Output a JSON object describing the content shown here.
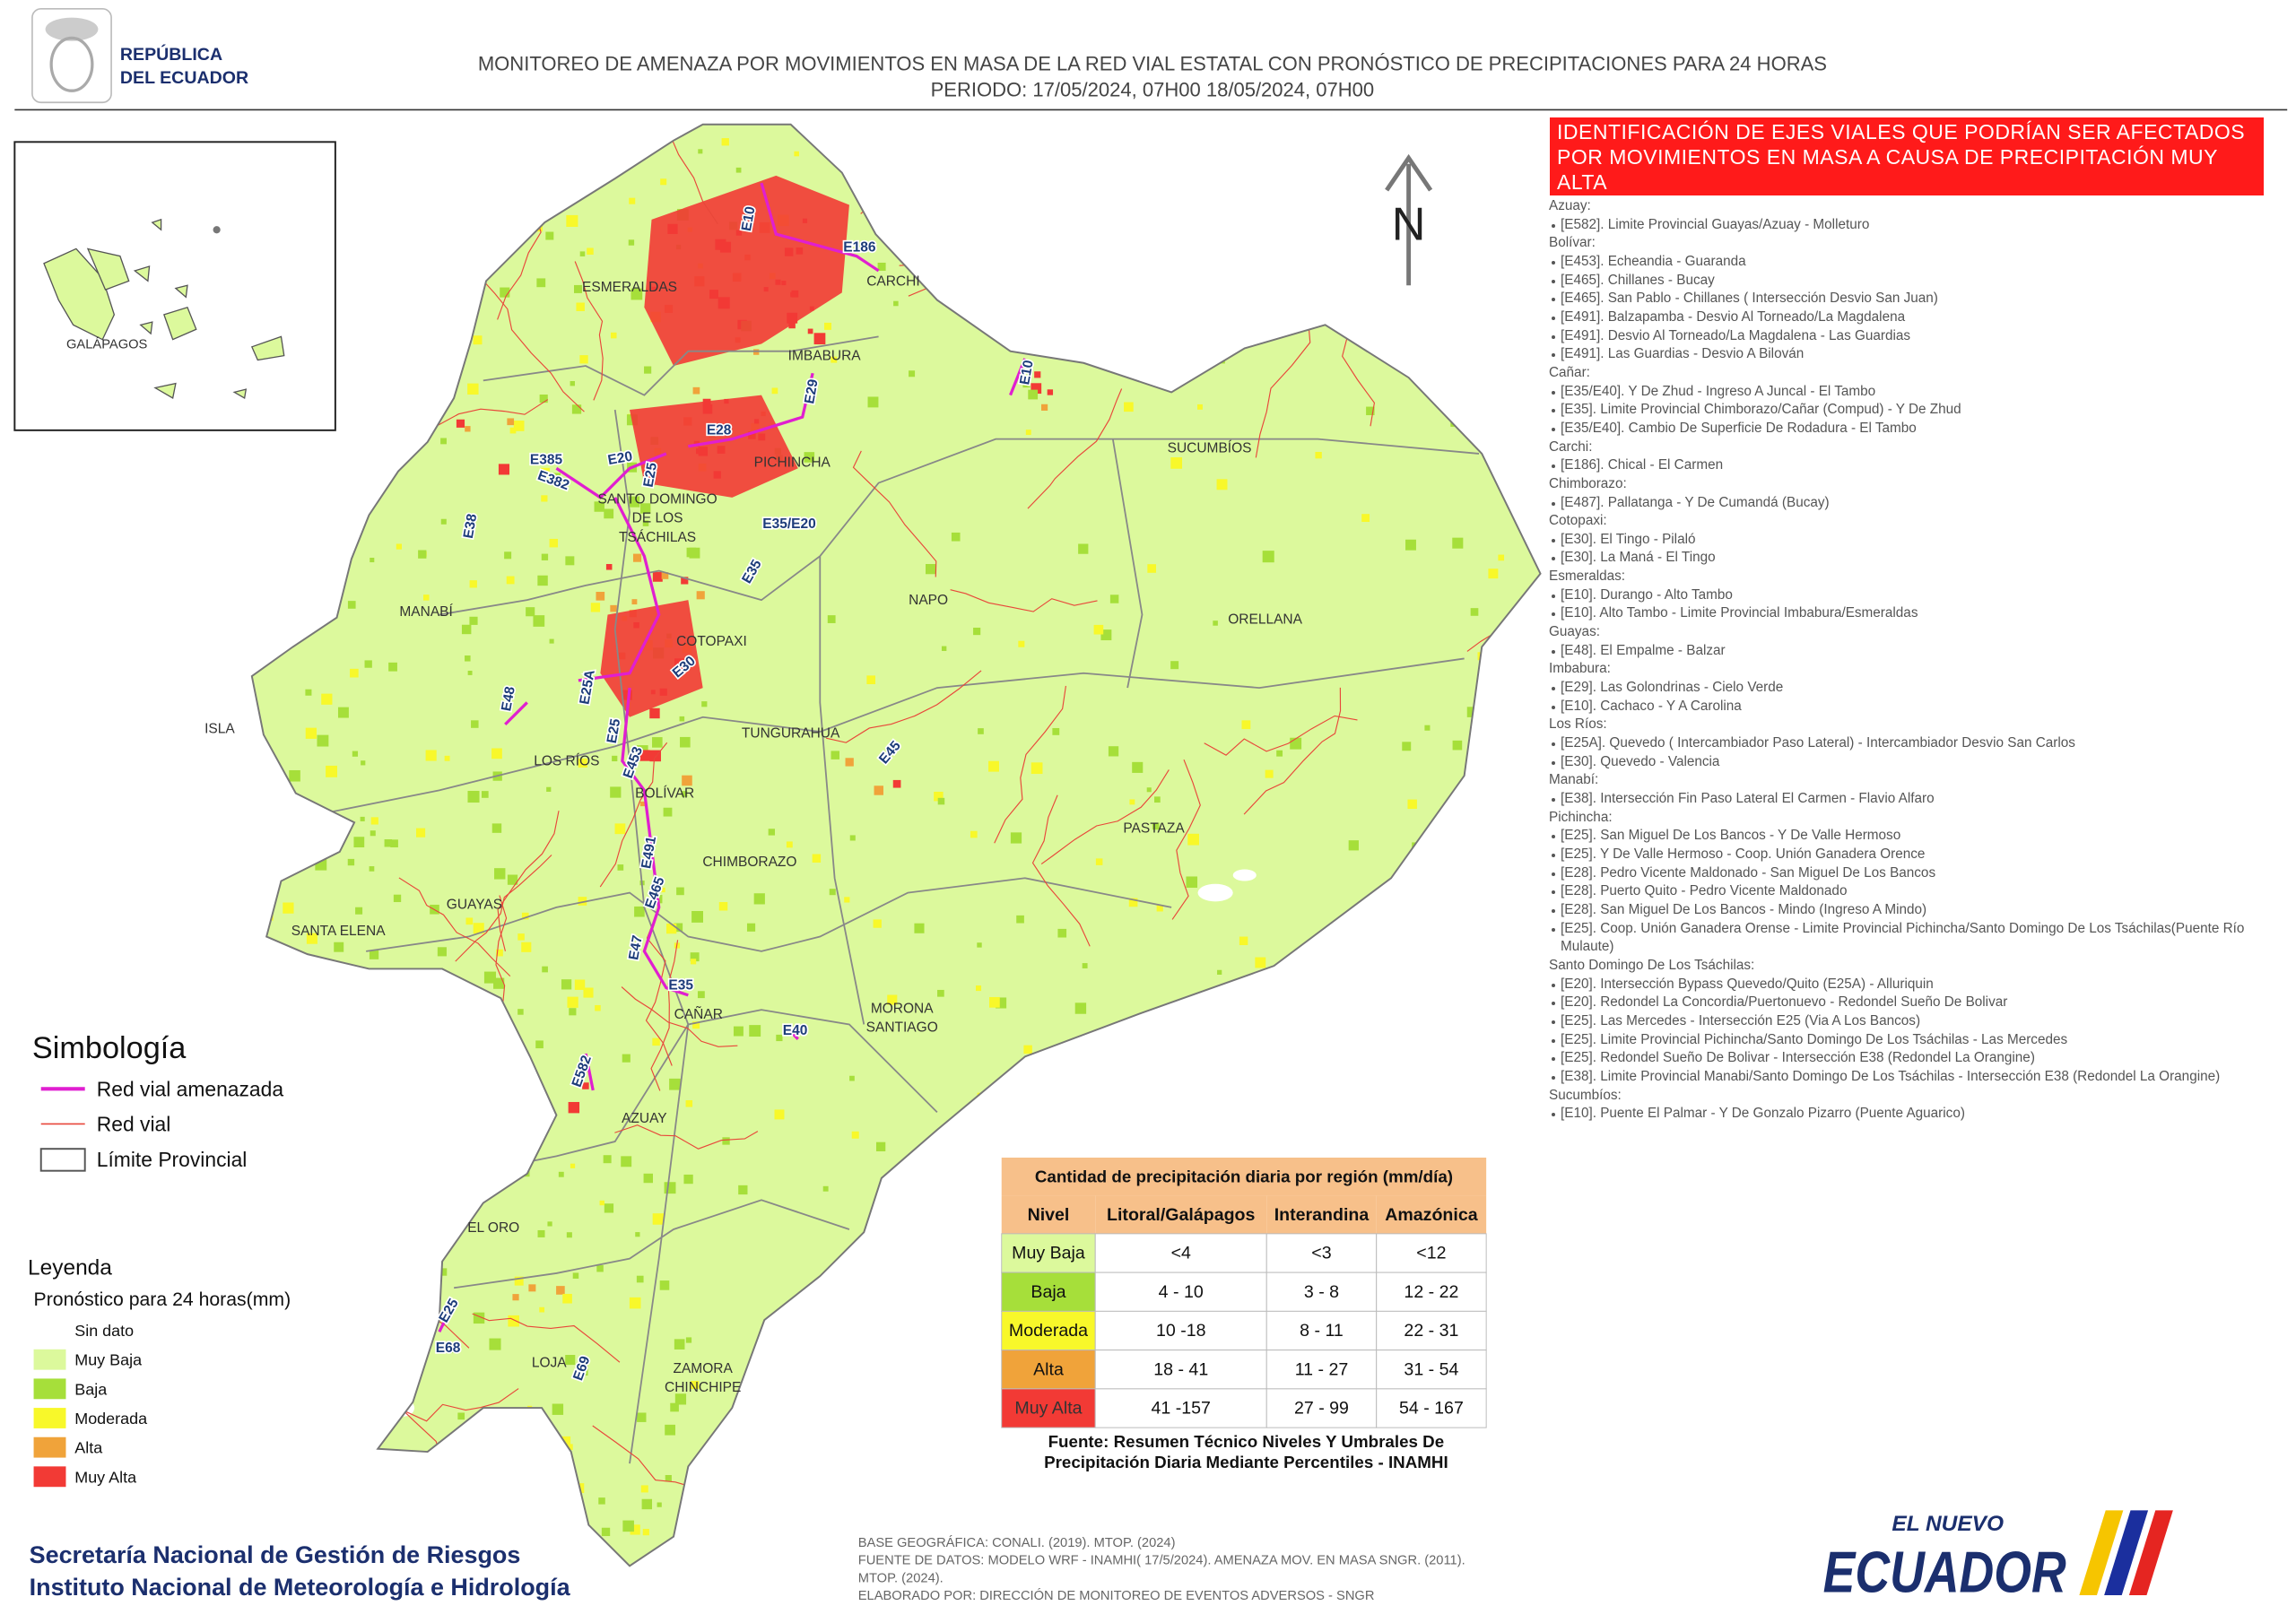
{
  "header": {
    "logo": [
      "REPÚBLICA",
      "DEL ECUADOR"
    ],
    "title": "MONITOREO DE AMENAZA POR MOVIMIENTOS EN MASA DE LA RED VIAL  ESTATAL  CON PRONÓSTICO  DE  PRECIPITACIONES PARA 24 HORAS",
    "period": "PERIODO: 17/05/2024, 07H00 18/05/2024, 07H00"
  },
  "inset": {
    "label": "GALÁPAGOS"
  },
  "map": {
    "north": "N",
    "regions": [
      {
        "lines": [
          "ESMERALDAS"
        ]
      },
      {
        "lines": [
          "CARCHI"
        ]
      },
      {
        "lines": [
          "IMBABURA"
        ]
      },
      {
        "lines": [
          "PICHINCHA"
        ]
      },
      {
        "lines": [
          "SUCUMBÍOS"
        ]
      },
      {
        "lines": [
          "SANTO DOMINGO",
          "DE LOS",
          "TSÁCHILAS"
        ]
      },
      {
        "lines": [
          "MANABÍ"
        ]
      },
      {
        "lines": [
          "ORELLANA"
        ]
      },
      {
        "lines": [
          "NAPO"
        ]
      },
      {
        "lines": [
          "COTOPAXI"
        ]
      },
      {
        "lines": [
          "ISLA"
        ]
      },
      {
        "lines": [
          "TUNGURAHUA"
        ]
      },
      {
        "lines": [
          "LOS RÍOS"
        ]
      },
      {
        "lines": [
          "BOLÍVAR"
        ]
      },
      {
        "lines": [
          "PASTAZA"
        ]
      },
      {
        "lines": [
          "CHIMBORAZO"
        ]
      },
      {
        "lines": [
          "GUAYAS"
        ]
      },
      {
        "lines": [
          "SANTA ELENA"
        ]
      },
      {
        "lines": [
          "CAÑAR"
        ]
      },
      {
        "lines": [
          "MORONA",
          "SANTIAGO"
        ]
      },
      {
        "lines": [
          "AZUAY"
        ]
      },
      {
        "lines": [
          "EL ORO"
        ]
      },
      {
        "lines": [
          "LOJA"
        ]
      },
      {
        "lines": [
          "ZAMORA",
          "CHINCHIPE"
        ]
      }
    ],
    "roads": [
      "E10",
      "E186",
      "E29",
      "E10",
      "E28",
      "E20",
      "E25",
      "E385",
      "E382",
      "E38",
      "E35/E20",
      "E35",
      "E30",
      "E48",
      "E25A",
      "E25",
      "E453",
      "E491",
      "E465",
      "E47",
      "E35",
      "E40",
      "E582",
      "E45",
      "E25",
      "E68",
      "E69"
    ]
  },
  "symbology": {
    "title": "Simbología",
    "items": [
      "Red vial amenazada",
      "Red vial",
      "Límite Provincial"
    ]
  },
  "legend": {
    "title": "Leyenda",
    "subtitle": "Pronóstico para 24 horas(mm)",
    "items": [
      {
        "label": "Sin dato",
        "color": "#ffffff"
      },
      {
        "label": "Muy Baja",
        "color": "#dcf99c"
      },
      {
        "label": "Baja",
        "color": "#a6df3a"
      },
      {
        "label": "Moderada",
        "color": "#f8f82a"
      },
      {
        "label": "Alta",
        "color": "#f0a33a"
      },
      {
        "label": "Muy Alta",
        "color": "#f23a35"
      }
    ]
  },
  "table": {
    "title": "Cantidad de precipitación diaria por región (mm/día)",
    "columns": [
      "Nivel",
      "Litoral/Galápagos",
      "Interandina",
      "Amazónica"
    ],
    "rows": [
      [
        "Muy Baja",
        "<4",
        "<3",
        "<12"
      ],
      [
        "Baja",
        "4 - 10",
        "3 - 8",
        "12 - 22"
      ],
      [
        "Moderada",
        "10 -18",
        "8 - 11",
        "22 - 31"
      ],
      [
        "Alta",
        "18 - 41",
        "11 - 27",
        "31 - 54"
      ],
      [
        "Muy Alta",
        "41 -157",
        "27 - 99",
        "54 - 167"
      ]
    ],
    "source": [
      "Fuente: Resumen Técnico Niveles Y Umbrales De",
      "Precipitación Diaria Mediante Percentiles - INAMHI"
    ]
  },
  "alert": {
    "title": "IDENTIFICACIÓN DE EJES VIALES QUE PODRÍAN SER AFECTADOS POR MOVIMIENTOS EN MASA A CAUSA DE PRECIPITACIÓN MUY ALTA",
    "groups": [
      {
        "province": "Azuay:",
        "roads": [
          "[E582]. Limite Provincial Guayas/Azuay - Molleturo"
        ]
      },
      {
        "province": "Bolívar:",
        "roads": [
          "[E453]. Echeandia - Guaranda",
          "[E465]. Chillanes - Bucay",
          "[E465]. San Pablo - Chillanes ( Intersección Desvio San Juan)",
          "[E491]. Balzapamba - Desvio Al Torneado/La Magdalena",
          "[E491]. Desvio Al Torneado/La Magdalena - Las Guardias",
          "[E491]. Las Guardias - Desvio A Bilován"
        ]
      },
      {
        "province": "Cañar:",
        "roads": [
          "[E35/E40]. Y De Zhud - Ingreso A Juncal - El Tambo",
          "[E35]. Limite Provincial Chimborazo/Cañar (Compud) - Y De Zhud",
          "[E35/E40]. Cambio De Superficie De Rodadura - El Tambo"
        ]
      },
      {
        "province": "Carchi:",
        "roads": [
          "[E186]. Chical - El Carmen"
        ]
      },
      {
        "province": "Chimborazo:",
        "roads": [
          "[E487]. Pallatanga - Y De Cumandá (Bucay)"
        ]
      },
      {
        "province": "Cotopaxi:",
        "roads": [
          "[E30]. El Tingo - Pilaló",
          "[E30]. La Maná - El Tingo"
        ]
      },
      {
        "province": "Esmeraldas:",
        "roads": [
          "[E10]. Durango - Alto Tambo",
          "[E10]. Alto Tambo - Limite Provincial Imbabura/Esmeraldas"
        ]
      },
      {
        "province": "Guayas:",
        "roads": [
          "[E48]. El Empalme - Balzar"
        ]
      },
      {
        "province": "Imbabura:",
        "roads": [
          "[E29]. Las Golondrinas - Cielo Verde",
          "[E10]. Cachaco - Y A Carolina"
        ]
      },
      {
        "province": "Los Ríos:",
        "roads": [
          "[E25A]. Quevedo ( Intercambiador Paso Lateral) - Intercambiador Desvio  San Carlos",
          "[E30]. Quevedo - Valencia"
        ]
      },
      {
        "province": "Manabí:",
        "roads": [
          "[E38]. Intersección Fin Paso Lateral El Carmen - Flavio Alfaro"
        ]
      },
      {
        "province": "Pichincha:",
        "roads": [
          "[E25]. San Miguel De Los Bancos - Y De Valle Hermoso",
          "[E25]. Y De Valle Hermoso - Coop. Unión Ganadera Orence",
          "[E28]. Pedro Vicente Maldonado - San Miguel De Los Bancos",
          "[E28]. Puerto Quito - Pedro Vicente Maldonado",
          "[E28]. San Miguel De Los Bancos - Mindo (Ingreso A Mindo)",
          "[E25]. Coop. Unión Ganadera Orense - Limite Provincial Pichincha/Santo Domingo De Los Tsáchilas(Puente Río Mulaute)"
        ]
      },
      {
        "province": "Santo Domingo De Los Tsáchilas:",
        "roads": [
          "[E20]. Intersección Bypass Quevedo/Quito (E25A) - Alluriquin",
          "[E20]. Redondel La Concordia/Puertonuevo - Redondel Sueño De Bolivar",
          "[E25]. Las Mercedes - Intersección E25 (Via A Los Bancos)",
          "[E25]. Limite Provincial Pichincha/Santo Domingo De Los Tsáchilas - Las Mercedes",
          "[E25]. Redondel Sueño De Bolivar - Intersección E38 (Redondel La Orangine)",
          "[E38]. Limite Provincial Manabi/Santo Domingo De Los Tsáchilas - Intersección E38 (Redondel La Orangine)"
        ]
      },
      {
        "province": "Sucumbíos:",
        "roads": [
          "[E10]. Puente El Palmar - Y De Gonzalo Pizarro (Puente Aguarico)"
        ]
      }
    ]
  },
  "footer": {
    "institutions": [
      "Secretaría Nacional de Gestión de Riesgos",
      "Instituto Nacional de Meteorología e Hidrología"
    ],
    "credits": [
      "BASE GEOGRÁFICA: CONALI. (2019). MTOP. (2024)",
      "FUENTE DE DATOS: MODELO WRF - INAMHI( 17/5/2024).  AMENAZA MOV. EN MASA SNGR. (2011).",
      "MTOP. (2024).",
      "ELABORADO POR: DIRECCIÓN DE MONITOREO DE EVENTOS ADVERSOS - SNGR"
    ],
    "brand": [
      "EL NUEVO",
      "ECUADOR"
    ]
  }
}
